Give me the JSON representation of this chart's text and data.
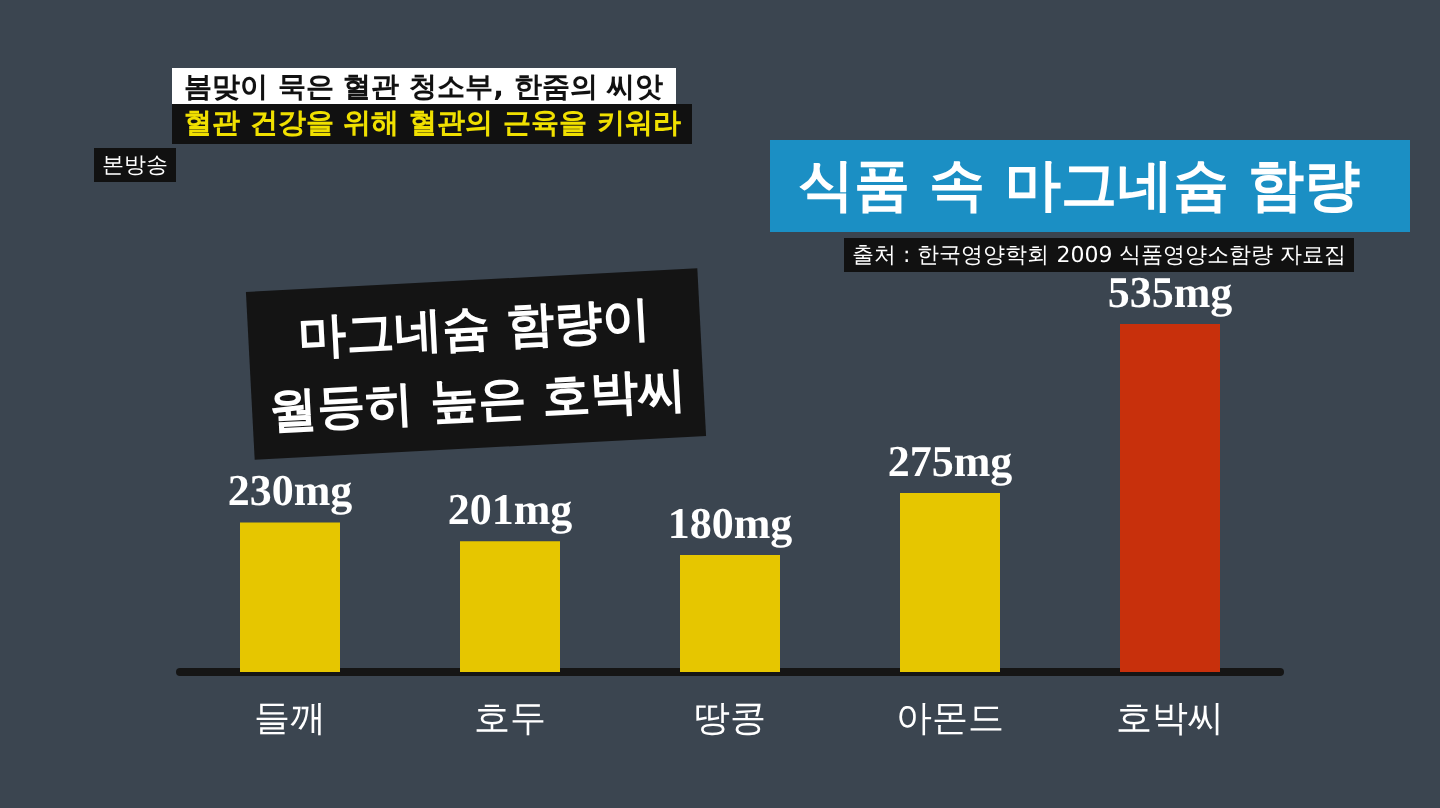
{
  "chart_data": {
    "type": "bar",
    "title": "식품 속 마그네슘 함량",
    "categories": [
      "들깨",
      "호두",
      "땅콩",
      "아몬드",
      "호박씨"
    ],
    "values": [
      230,
      201,
      180,
      275,
      535
    ],
    "colors": [
      "#e6c600",
      "#e6c600",
      "#e6c600",
      "#e6c600",
      "#c8300c"
    ],
    "value_labels": [
      "230mg",
      "201mg",
      "180mg",
      "275mg",
      "535mg"
    ],
    "annotations": [
      "출처 : 한국영양학회 2009 식품영양소함량 자료집",
      "마그네슘 함량이 월등히 높은 호박씨",
      "봄맞이 묵은 혈관 청소부, 한줌의 씨앗",
      "혈관 건강을 위해 혈관의 근육을 키워라",
      "본방송"
    ]
  }
}
